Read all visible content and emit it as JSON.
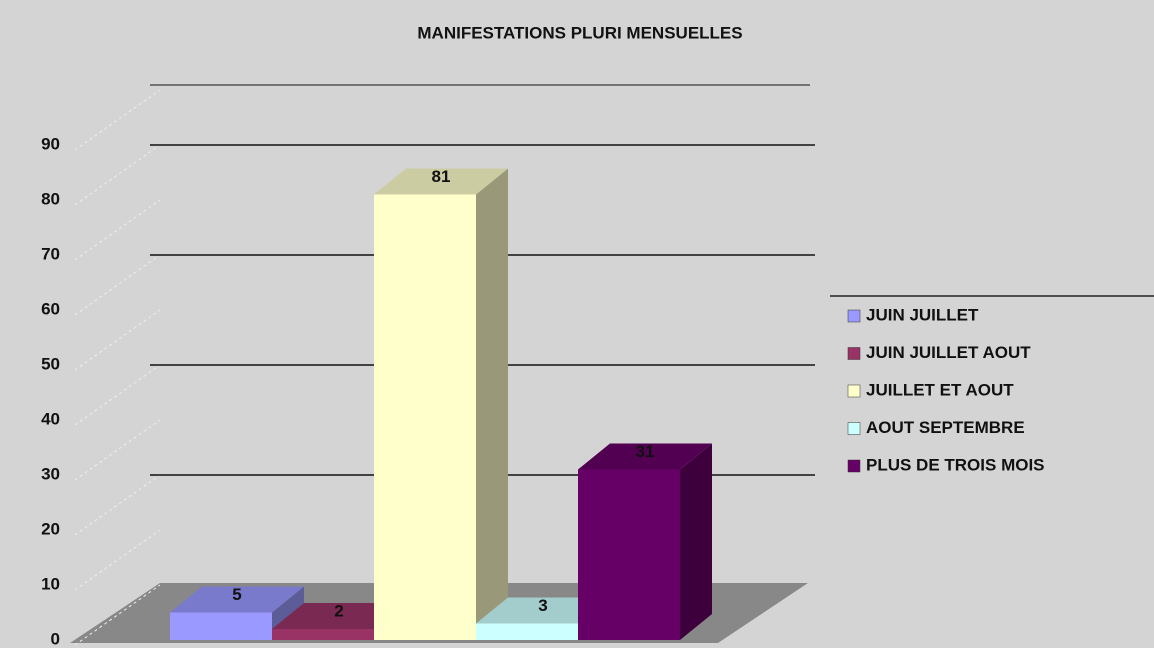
{
  "chart_data": {
    "type": "bar3d",
    "title": "MANIFESTATIONS PLURI MENSUELLES",
    "categories": [
      "JUIN JUILLET",
      "JUIN JUILLET AOUT",
      "JUILLET ET AOUT",
      "AOUT SEPTEMBRE",
      "PLUS DE TROIS MOIS"
    ],
    "values": [
      5,
      2,
      81,
      3,
      31
    ],
    "colors": [
      "#9999ff",
      "#993366",
      "#ffffcc",
      "#ccffff",
      "#660066"
    ],
    "ylim": [
      0,
      90
    ],
    "yticks": [
      0,
      10,
      20,
      30,
      40,
      50,
      60,
      70,
      80,
      90
    ],
    "grid": true,
    "legend": "right"
  }
}
